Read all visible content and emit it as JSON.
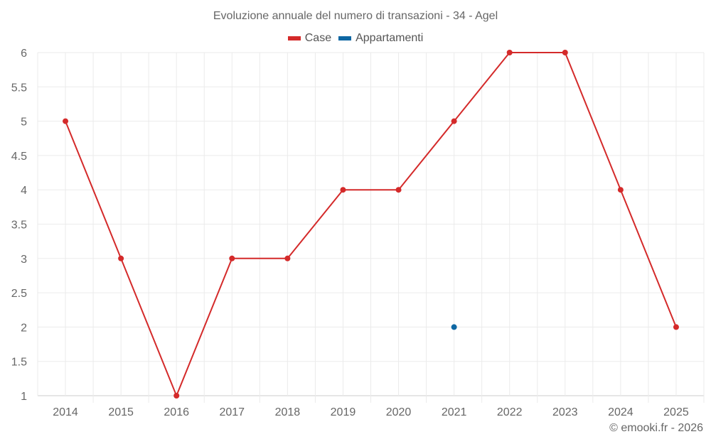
{
  "title": "Evoluzione annuale del numero di transazioni - 34 - Agel",
  "legend": [
    {
      "label": "Case",
      "color": "#d42a2a"
    },
    {
      "label": "Appartamenti",
      "color": "#0e67a3"
    }
  ],
  "credit": "© emooki.fr - 2026",
  "chart_data": {
    "type": "line",
    "title": "Evoluzione annuale del numero di transazioni - 34 - Agel",
    "xlabel": "",
    "ylabel": "",
    "categories": [
      "2014",
      "2015",
      "2016",
      "2017",
      "2018",
      "2019",
      "2020",
      "2021",
      "2022",
      "2023",
      "2024",
      "2025"
    ],
    "series": [
      {
        "name": "Case",
        "color": "#d42a2a",
        "values": [
          5,
          3,
          1,
          3,
          3,
          4,
          4,
          5,
          6,
          6,
          4,
          2
        ]
      },
      {
        "name": "Appartamenti",
        "color": "#0e67a3",
        "values": [
          null,
          null,
          null,
          null,
          null,
          null,
          null,
          2,
          null,
          null,
          null,
          null
        ]
      }
    ],
    "ylim": [
      1,
      6
    ],
    "yticks": [
      "1",
      "1.5",
      "2",
      "2.5",
      "3",
      "3.5",
      "4",
      "4.5",
      "5",
      "5.5",
      "6"
    ],
    "grid": true,
    "legend_position": "top"
  }
}
